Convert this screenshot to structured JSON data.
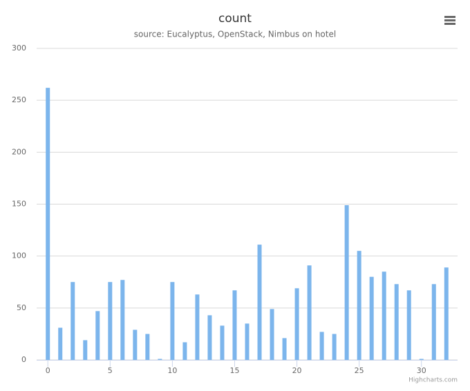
{
  "chart_data": {
    "type": "bar",
    "title": "count",
    "subtitle": "source: Eucalyptus, OpenStack, Nimbus on hotel",
    "credits": "Highcharts.com",
    "x": [
      0,
      1,
      2,
      3,
      4,
      5,
      6,
      7,
      8,
      9,
      10,
      11,
      12,
      13,
      14,
      15,
      16,
      17,
      18,
      19,
      20,
      21,
      22,
      23,
      24,
      25,
      26,
      27,
      28,
      29,
      30,
      31,
      32
    ],
    "values": [
      262,
      31,
      75,
      19,
      47,
      75,
      77,
      29,
      25,
      1,
      75,
      17,
      63,
      43,
      33,
      67,
      35,
      111,
      49,
      21,
      69,
      91,
      27,
      25,
      149,
      105,
      80,
      85,
      73,
      67,
      1,
      73,
      89
    ],
    "color": "#7cb5ec",
    "xlim": [
      -0.9,
      32.9
    ],
    "xticks": [
      0,
      5,
      10,
      15,
      20,
      25,
      30
    ],
    "ylim": [
      0,
      300
    ],
    "yticks": [
      0,
      50,
      100,
      150,
      200,
      250,
      300
    ],
    "grid": true
  }
}
